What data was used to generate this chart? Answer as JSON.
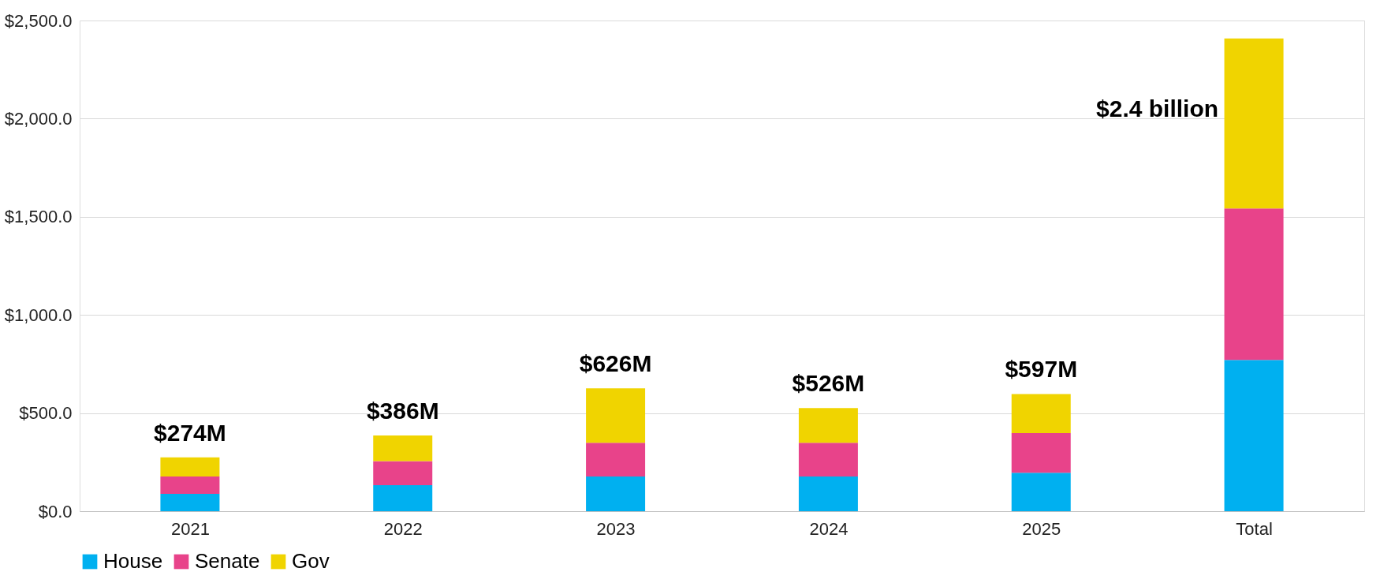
{
  "chart_data": {
    "type": "bar",
    "stacked": true,
    "categories": [
      "2021",
      "2022",
      "2023",
      "2024",
      "2025",
      "Total"
    ],
    "series": [
      {
        "name": "House",
        "color": "#00b0f0",
        "values": [
          88,
          133,
          177,
          177,
          196,
          771
        ]
      },
      {
        "name": "Senate",
        "color": "#e8438a",
        "values": [
          89,
          122,
          172,
          172,
          202,
          771
        ]
      },
      {
        "name": "Gov",
        "color": "#f0d400",
        "values": [
          97,
          131,
          277,
          177,
          199,
          867
        ]
      }
    ],
    "totals": [
      "$274M",
      "$386M",
      "$626M",
      "$526M",
      "$597M",
      "$2.4 billion"
    ],
    "ylim": [
      0,
      2500
    ],
    "yticks": [
      {
        "value": 0,
        "label": "$0.0"
      },
      {
        "value": 500,
        "label": "$500.0"
      },
      {
        "value": 1000,
        "label": "$1,000.0"
      },
      {
        "value": 1500,
        "label": "$1,500.0"
      },
      {
        "value": 2000,
        "label": "$2,000.0"
      },
      {
        "value": 2500,
        "label": "$2,500.0"
      }
    ],
    "grid": "y",
    "legend": "bottom"
  }
}
